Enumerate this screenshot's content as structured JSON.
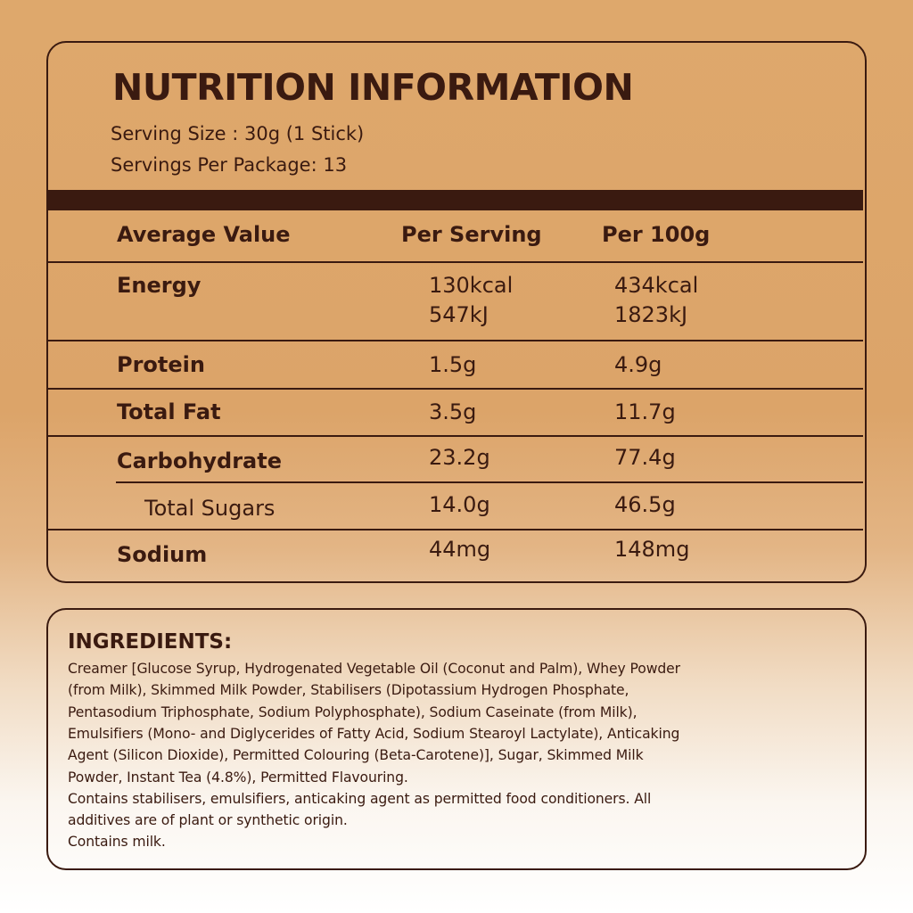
{
  "nutrition": {
    "title": "NUTRITION INFORMATION",
    "serving_size": "Serving Size : 30g (1 Stick)",
    "servings_per_package": "Servings Per Package: 13",
    "header": [
      "Average Value",
      "Per Serving",
      "Per 100g"
    ],
    "rows": [
      [
        "Energy",
        [
          "130kcal",
          "547kJ"
        ],
        [
          "434kcal",
          "1823kJ"
        ]
      ],
      [
        "Protein",
        [
          "1.5g"
        ],
        [
          "4.9g"
        ]
      ],
      [
        "Total Fat",
        [
          "3.5g"
        ],
        [
          "11.7g"
        ]
      ],
      [
        "Carbohydrate",
        [
          "23.2g"
        ],
        [
          "77.4g"
        ]
      ],
      [
        "Total Sugars",
        [
          "14.0g"
        ],
        [
          "46.5g"
        ]
      ],
      [
        "Sodium",
        [
          "44mg"
        ],
        [
          "148mg"
        ]
      ]
    ]
  },
  "ingredients": {
    "title": "INGREDIENTS:",
    "lines": [
      "Creamer [Glucose Syrup, Hydrogenated Vegetable Oil (Coconut and Palm), Whey Powder",
      "(from Milk), Skimmed Milk Powder, Stabilisers (Dipotassium Hydrogen Phosphate,",
      "Pentasodium Triphosphate, Sodium Polyphosphate), Sodium Caseinate (from Milk),",
      "Emulsifiers (Mono- and Diglycerides of Fatty Acid, Sodium Stearoyl Lactylate), Anticaking",
      "Agent (Silicon Dioxide), Permitted Colouring (Beta-Carotene)], Sugar, Skimmed Milk",
      "Powder, Instant Tea (4.8%), Permitted Flavouring.",
      "Contains stabilisers, emulsifiers, anticaking agent as permitted food conditioners. All",
      "additives are of plant or synthetic origin.",
      "Contains milk."
    ]
  }
}
